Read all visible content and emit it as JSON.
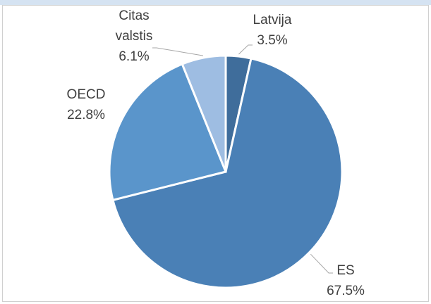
{
  "chart_data": {
    "type": "pie",
    "categories": [
      "Latvija",
      "ES",
      "OECD",
      "Citas valstis"
    ],
    "values": [
      3.5,
      67.5,
      22.8,
      6.1
    ],
    "value_labels": [
      "3.5%",
      "67.5%",
      "22.8%",
      "6.1%"
    ],
    "colors": [
      "#3f6d9b",
      "#4a80b6",
      "#5a95cb",
      "#9ebde2"
    ]
  }
}
